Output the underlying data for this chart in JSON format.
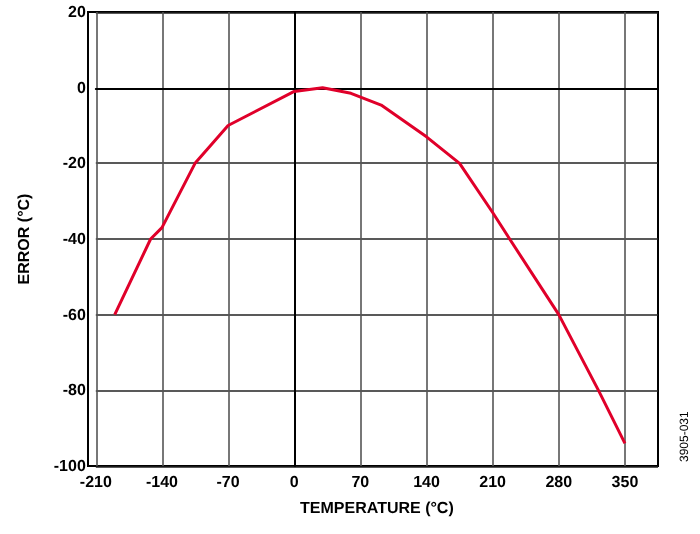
{
  "chart_data": {
    "type": "line",
    "xlabel": "TEMPERATURE (°C)",
    "ylabel": "ERROR (°C)",
    "x": [
      -190,
      -152,
      -140,
      -105,
      -70,
      0,
      30,
      60,
      92,
      140,
      175,
      210,
      228,
      280,
      322,
      350
    ],
    "series": [
      {
        "color": "#e0002a",
        "values": [
          -60,
          -40,
          -37,
          -20,
          -10,
          -1,
          0,
          -1.5,
          -4.6,
          -13,
          -20,
          -33,
          -40,
          -60,
          -80,
          -94
        ]
      }
    ],
    "xlim": [
      -210,
      385
    ],
    "xticks": [
      -210,
      -140,
      -70,
      0,
      70,
      140,
      210,
      280,
      350
    ],
    "ylim": [
      -100,
      20
    ],
    "yticks": [
      -100,
      -80,
      -60,
      -40,
      -20,
      0,
      20
    ],
    "grid": true,
    "marker": "none",
    "line_style": "solid",
    "annotations": [
      "3905-031"
    ]
  }
}
